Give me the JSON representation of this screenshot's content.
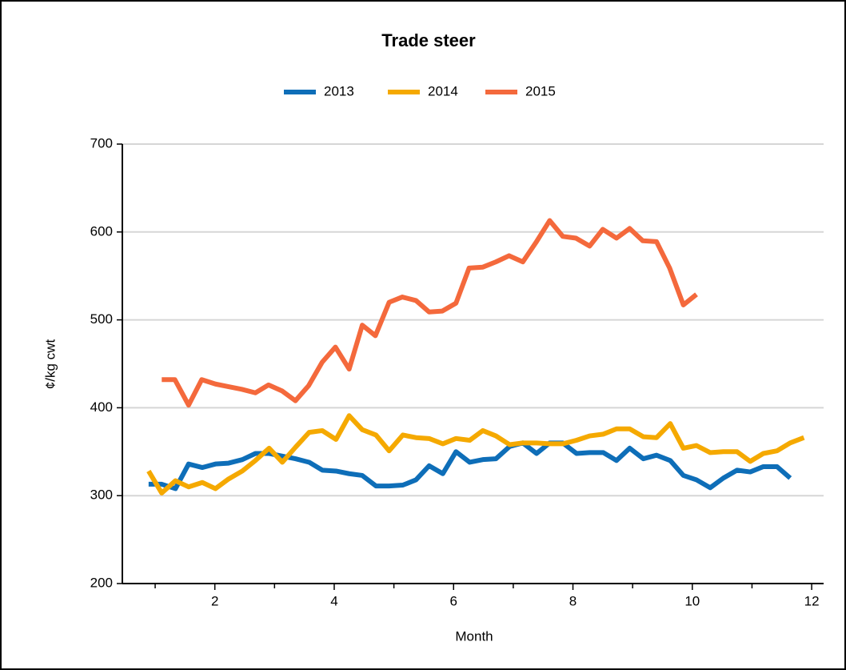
{
  "chart_data": {
    "type": "line",
    "title": "Trade steer",
    "xlabel": "Month",
    "ylabel": "¢/kg cwt",
    "xlim": [
      0.45,
      12.2
    ],
    "xticks": [
      2,
      4,
      6,
      8,
      10,
      12
    ],
    "xminorticks": [
      1,
      3,
      5,
      7,
      9,
      11
    ],
    "ylim": [
      200,
      700
    ],
    "yticks": [
      200,
      300,
      400,
      500,
      600,
      700
    ],
    "grid": true,
    "legend": "top",
    "series": [
      {
        "name": "2013",
        "color": "#0e6eb8",
        "x": [
          0.89,
          1.11,
          1.34,
          1.56,
          1.79,
          2.01,
          2.23,
          2.46,
          2.68,
          2.91,
          3.13,
          3.35,
          3.58,
          3.8,
          4.03,
          4.25,
          4.47,
          4.7,
          4.92,
          5.15,
          5.37,
          5.59,
          5.82,
          6.04,
          6.27,
          6.49,
          6.71,
          6.94,
          7.16,
          7.39,
          7.61,
          7.83,
          8.06,
          8.28,
          8.51,
          8.73,
          8.95,
          9.18,
          9.4,
          9.63,
          9.85,
          10.07,
          10.3,
          10.52,
          10.75,
          10.97,
          11.19,
          11.42,
          11.64
        ],
        "values": [
          313,
          313,
          308,
          336,
          332,
          336,
          337,
          341,
          348,
          348,
          345,
          342,
          338,
          329,
          328,
          325,
          323,
          311,
          311,
          312,
          318,
          334,
          325,
          350,
          338,
          341,
          342,
          356,
          360,
          348,
          360,
          360,
          348,
          349,
          349,
          340,
          354,
          342,
          346,
          340,
          323,
          318,
          309,
          320,
          329,
          327,
          333,
          333,
          320
        ]
      },
      {
        "name": "2014",
        "color": "#f5a900",
        "x": [
          0.89,
          1.11,
          1.34,
          1.56,
          1.79,
          2.01,
          2.23,
          2.46,
          2.68,
          2.91,
          3.13,
          3.35,
          3.58,
          3.8,
          4.03,
          4.25,
          4.47,
          4.7,
          4.92,
          5.15,
          5.37,
          5.59,
          5.82,
          6.04,
          6.27,
          6.49,
          6.71,
          6.94,
          7.16,
          7.39,
          7.61,
          7.83,
          8.06,
          8.28,
          8.51,
          8.73,
          8.95,
          9.18,
          9.4,
          9.63,
          9.85,
          10.07,
          10.3,
          10.52,
          10.75,
          10.97,
          11.19,
          11.42,
          11.64,
          11.87
        ],
        "values": [
          328,
          303,
          317,
          310,
          315,
          308,
          319,
          328,
          340,
          354,
          338,
          355,
          372,
          374,
          364,
          391,
          375,
          369,
          351,
          369,
          366,
          365,
          359,
          365,
          363,
          374,
          368,
          358,
          360,
          360,
          359,
          359,
          363,
          368,
          370,
          376,
          376,
          367,
          366,
          382,
          354,
          357,
          349,
          350,
          350,
          339,
          348,
          351,
          360,
          366
        ]
      },
      {
        "name": "2015",
        "color": "#f4693c",
        "x": [
          1.11,
          1.33,
          1.56,
          1.78,
          2.01,
          2.23,
          2.45,
          2.68,
          2.9,
          3.13,
          3.35,
          3.57,
          3.8,
          4.02,
          4.25,
          4.47,
          4.69,
          4.92,
          5.14,
          5.37,
          5.59,
          5.81,
          6.04,
          6.26,
          6.49,
          6.71,
          6.93,
          7.16,
          7.38,
          7.61,
          7.83,
          8.05,
          8.28,
          8.5,
          8.73,
          8.95,
          9.17,
          9.4,
          9.62,
          9.85,
          10.07
        ],
        "values": [
          432,
          432,
          403,
          432,
          427,
          424,
          421,
          417,
          426,
          419,
          408,
          425,
          452,
          469,
          444,
          494,
          482,
          520,
          526,
          522,
          509,
          510,
          519,
          559,
          560,
          566,
          573,
          566,
          588,
          613,
          595,
          593,
          584,
          603,
          593,
          604,
          590,
          589,
          559,
          517,
          529
        ]
      }
    ]
  }
}
